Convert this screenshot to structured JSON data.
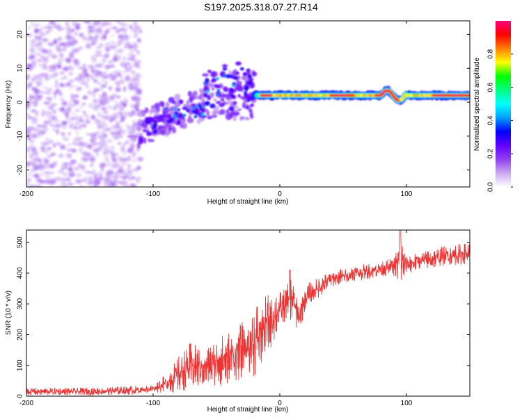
{
  "title": "S197.2025.318.07.27.R14",
  "chart_data": [
    {
      "type": "heatmap",
      "title": "S197.2025.318.07.27.R14",
      "xlabel": "Height of straight line (km)",
      "ylabel": "Frequency (Hz)",
      "xlim": [
        -200,
        150
      ],
      "ylim": [
        -25,
        24
      ],
      "xticks": [
        -200,
        -100,
        0,
        100
      ],
      "yticks": [
        -20,
        -10,
        0,
        10,
        20
      ],
      "colorbar": {
        "label": "Normalized spectral amplitude",
        "range": [
          0,
          1
        ],
        "ticks": [
          0.0,
          0.2,
          0.4,
          0.6,
          0.8
        ],
        "tick_labels": [
          "0.0",
          "0.2",
          "0.4",
          "0.6",
          "0.8"
        ],
        "colors": [
          "#ffffff",
          "#c8a8f0",
          "#9040f0",
          "#6000ff",
          "#0000ff",
          "#00a0ff",
          "#00ffff",
          "#00ff80",
          "#00ff00",
          "#ffff00",
          "#ff8000",
          "#ff0000",
          "#ff0080"
        ]
      },
      "regions": [
        {
          "name": "noise",
          "x_range": [
            -200,
            -110
          ],
          "freq_range": [
            -25,
            24
          ],
          "amplitude": 0.1
        },
        {
          "name": "onset",
          "x_range": [
            -110,
            -20
          ],
          "freq_center": [
            2,
            -6
          ],
          "amplitude": 0.3
        },
        {
          "name": "carrier",
          "x_range": [
            -20,
            150
          ],
          "freq_center": 2,
          "amplitude": 0.95
        }
      ]
    },
    {
      "type": "line",
      "xlabel": "Height of straight line (km)",
      "ylabel": "SNR (10 * v/v)",
      "xlim": [
        -200,
        150
      ],
      "ylim": [
        0,
        540
      ],
      "xticks": [
        -200,
        -100,
        0,
        100
      ],
      "yticks": [
        0,
        100,
        200,
        300,
        400,
        500
      ],
      "color": "#ee3333",
      "series": [
        {
          "name": "SNR",
          "x": [
            -200,
            -150,
            -110,
            -100,
            -90,
            -80,
            -70,
            -60,
            -50,
            -40,
            -30,
            -20,
            -10,
            0,
            5,
            10,
            15,
            20,
            30,
            40,
            50,
            60,
            70,
            80,
            90,
            95,
            100,
            110,
            120,
            130,
            140,
            150
          ],
          "mean": [
            15,
            15,
            20,
            25,
            40,
            70,
            100,
            90,
            110,
            120,
            150,
            180,
            230,
            280,
            300,
            320,
            250,
            320,
            350,
            380,
            390,
            400,
            405,
            415,
            420,
            440,
            425,
            440,
            445,
            455,
            460,
            465
          ],
          "spread": [
            12,
            12,
            14,
            15,
            35,
            70,
            90,
            70,
            90,
            110,
            110,
            140,
            120,
            70,
            60,
            100,
            60,
            50,
            40,
            30,
            30,
            30,
            30,
            30,
            35,
            100,
            35,
            35,
            35,
            40,
            40,
            40
          ]
        }
      ]
    }
  ]
}
